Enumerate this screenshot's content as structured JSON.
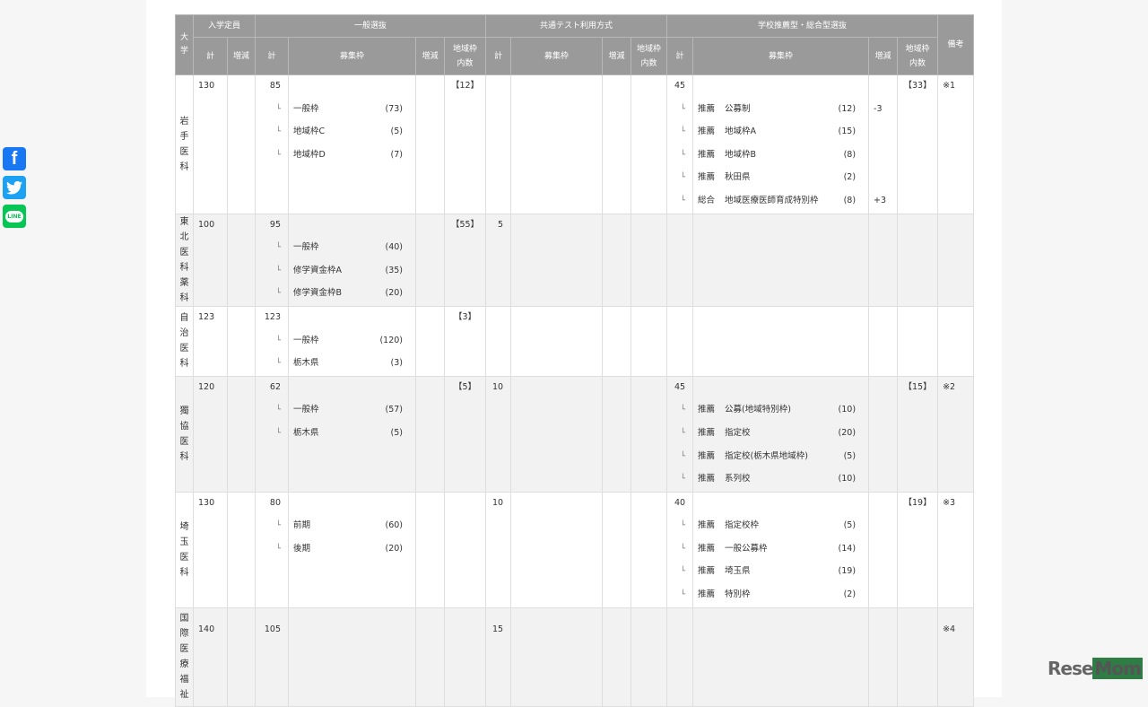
{
  "header": {
    "university": "大学",
    "capacity": "入学定員",
    "general": "一般選抜",
    "common_test": "共通テスト利用方式",
    "recommend": "学校推薦型・総合型選抜",
    "note": "備考",
    "total": "計",
    "change": "増減",
    "slots": "募集枠",
    "regional": "地域枠内数"
  },
  "universities": [
    {
      "name": "岩手医科",
      "capacity": "130",
      "capacity_change": "",
      "general": {
        "total": "85",
        "items": [
          {
            "name": "一般枠",
            "count": "(73)",
            "change": ""
          },
          {
            "name": "地域枠C",
            "count": "(5)",
            "change": ""
          },
          {
            "name": "地域枠D",
            "count": "(7)",
            "change": ""
          }
        ],
        "regional": "【12】"
      },
      "common": {
        "total": "",
        "items": [],
        "regional": ""
      },
      "recommend": {
        "total": "45",
        "items": [
          {
            "type": "推薦",
            "name": "公募制",
            "count": "(12)",
            "change": "-3"
          },
          {
            "type": "推薦",
            "name": "地域枠A",
            "count": "(15)",
            "change": ""
          },
          {
            "type": "推薦",
            "name": "地域枠B",
            "count": "(8)",
            "change": ""
          },
          {
            "type": "推薦",
            "name": "秋田県",
            "count": "(2)",
            "change": ""
          },
          {
            "type": "総合",
            "name": "地域医療医師育成特別枠",
            "count": "(8)",
            "change": "+3"
          }
        ],
        "regional": "【33】"
      },
      "note": "※1"
    },
    {
      "name": "東北医科薬科",
      "capacity": "100",
      "capacity_change": "",
      "general": {
        "total": "95",
        "items": [
          {
            "name": "一般枠",
            "count": "(40)",
            "change": ""
          },
          {
            "name": "修学資金枠A",
            "count": "(35)",
            "change": ""
          },
          {
            "name": "修学資金枠B",
            "count": "(20)",
            "change": ""
          }
        ],
        "regional": "【55】"
      },
      "common": {
        "total": "5",
        "items": [],
        "regional": ""
      },
      "recommend": {
        "total": "",
        "items": [],
        "regional": ""
      },
      "note": ""
    },
    {
      "name": "自治医科",
      "capacity": "123",
      "capacity_change": "",
      "general": {
        "total": "123",
        "items": [
          {
            "name": "一般枠",
            "count": "(120)",
            "change": ""
          },
          {
            "name": "栃木県",
            "count": "(3)",
            "change": ""
          }
        ],
        "regional": "【3】"
      },
      "common": {
        "total": "",
        "items": [],
        "regional": ""
      },
      "recommend": {
        "total": "",
        "items": [],
        "regional": ""
      },
      "note": ""
    },
    {
      "name": "獨協医科",
      "capacity": "120",
      "capacity_change": "",
      "general": {
        "total": "62",
        "items": [
          {
            "name": "一般枠",
            "count": "(57)",
            "change": ""
          },
          {
            "name": "栃木県",
            "count": "(5)",
            "change": ""
          }
        ],
        "regional": "【5】"
      },
      "common": {
        "total": "10",
        "items": [],
        "regional": ""
      },
      "recommend": {
        "total": "45",
        "items": [
          {
            "type": "推薦",
            "name": "公募(地域特別枠)",
            "count": "(10)",
            "change": ""
          },
          {
            "type": "推薦",
            "name": "指定校",
            "count": "(20)",
            "change": ""
          },
          {
            "type": "推薦",
            "name": "指定校(栃木県地域枠)",
            "count": "(5)",
            "change": ""
          },
          {
            "type": "推薦",
            "name": "系列校",
            "count": "(10)",
            "change": ""
          }
        ],
        "regional": "【15】"
      },
      "note": "※2"
    },
    {
      "name": "埼玉医科",
      "capacity": "130",
      "capacity_change": "",
      "general": {
        "total": "80",
        "items": [
          {
            "name": "前期",
            "count": "(60)",
            "change": ""
          },
          {
            "name": "後期",
            "count": "(20)",
            "change": ""
          }
        ],
        "regional": ""
      },
      "common": {
        "total": "10",
        "items": [],
        "regional": ""
      },
      "recommend": {
        "total": "40",
        "items": [
          {
            "type": "推薦",
            "name": "指定校枠",
            "count": "(5)",
            "change": ""
          },
          {
            "type": "推薦",
            "name": "一般公募枠",
            "count": "(14)",
            "change": ""
          },
          {
            "type": "推薦",
            "name": "埼玉県",
            "count": "(19)",
            "change": ""
          },
          {
            "type": "推薦",
            "name": "特別枠",
            "count": "(2)",
            "change": ""
          }
        ],
        "regional": "【19】"
      },
      "note": "※3"
    },
    {
      "name": "国際医療福祉",
      "capacity": "140",
      "capacity_change": "",
      "general": {
        "total": "105",
        "items": [],
        "regional": ""
      },
      "common": {
        "total": "15",
        "items": [],
        "regional": ""
      },
      "recommend": {
        "total": "",
        "items": [],
        "regional": ""
      },
      "note": "※4"
    }
  ],
  "sub_marker": "└",
  "social": {
    "facebook": "f",
    "twitter": "twitter-bird-icon",
    "line": "LINE"
  },
  "logo": {
    "text_a": "Rese",
    "text_b": "Mom"
  },
  "colors": {
    "header_bg": "#9a9a9a",
    "alt_row": "#f2f2f2",
    "facebook": "#1877f2",
    "twitter": "#1da1f2",
    "line": "#06c755",
    "logo_green": "#2e7d45"
  }
}
